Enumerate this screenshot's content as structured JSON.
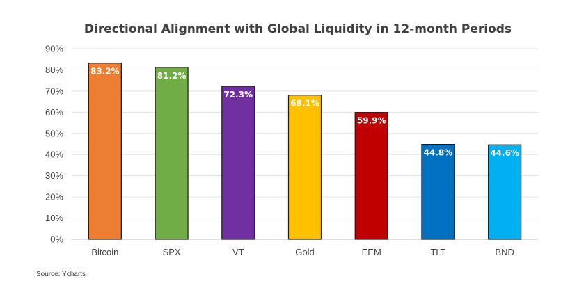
{
  "chart_data": {
    "type": "bar",
    "title": "Directional Alignment with Global Liquidity in 12-month Periods",
    "categories": [
      "Bitcoin",
      "SPX",
      "VT",
      "Gold",
      "EEM",
      "TLT",
      "BND"
    ],
    "values": [
      83.2,
      81.2,
      72.3,
      68.1,
      59.9,
      44.8,
      44.6
    ],
    "data_labels": [
      "83.2%",
      "81.2%",
      "72.3%",
      "68.1%",
      "59.9%",
      "44.8%",
      "44.6%"
    ],
    "colors": [
      "#ED7D31",
      "#70AD47",
      "#7030A0",
      "#FFC000",
      "#C00000",
      "#0070C0",
      "#00B0F0"
    ],
    "ylim": [
      0,
      90
    ],
    "yticks": [
      0,
      10,
      20,
      30,
      40,
      50,
      60,
      70,
      80,
      90
    ],
    "ytick_labels": [
      "0%",
      "10%",
      "20%",
      "30%",
      "40%",
      "50%",
      "60%",
      "70%",
      "80%",
      "90%"
    ],
    "grid": true,
    "legend": "none"
  },
  "source": "Source: Ycharts"
}
